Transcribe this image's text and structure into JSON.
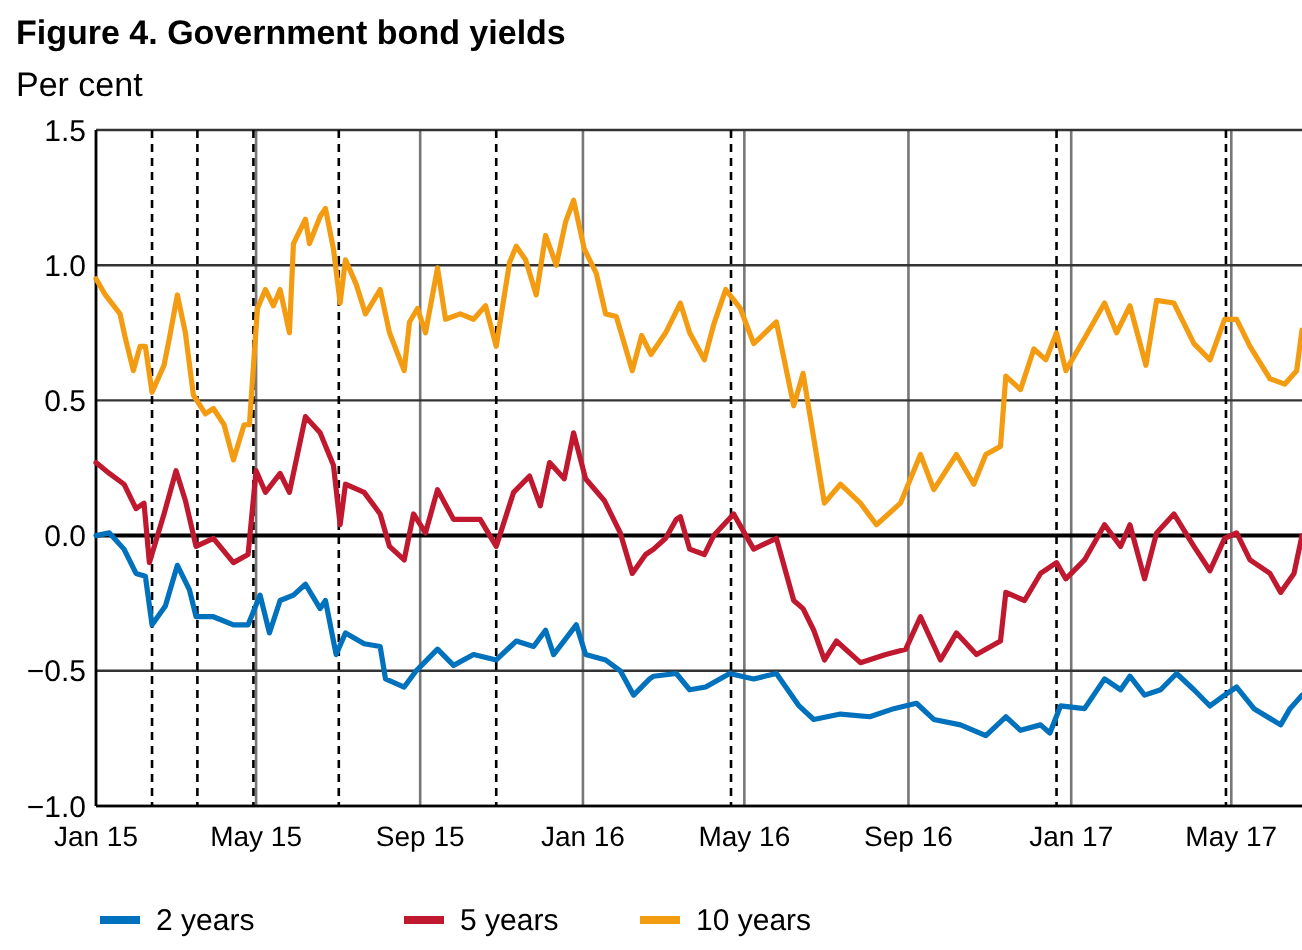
{
  "chart_data": {
    "type": "line",
    "title": "Figure 4. Government bond yields",
    "subtitle": "Per cent",
    "xlim": [
      "2015-01-01",
      "2017-06-23"
    ],
    "xticks": [
      {
        "value": "2015-01-01",
        "label": "Jan 15"
      },
      {
        "value": "2015-05-01",
        "label": "May 15"
      },
      {
        "value": "2015-09-01",
        "label": "Sep 15"
      },
      {
        "value": "2016-01-01",
        "label": "Jan 16"
      },
      {
        "value": "2016-05-01",
        "label": "May 16"
      },
      {
        "value": "2016-09-01",
        "label": "Sep 16"
      },
      {
        "value": "2017-01-01",
        "label": "Jan 17"
      },
      {
        "value": "2017-05-01",
        "label": "May 17"
      }
    ],
    "ylim": [
      -1,
      1.5
    ],
    "yticks": [
      {
        "value": -1,
        "label": "−1.0"
      },
      {
        "value": -0.5,
        "label": "−0.5"
      },
      {
        "value": 0,
        "label": "0.0"
      },
      {
        "value": 0.5,
        "label": "0.5"
      },
      {
        "value": 1,
        "label": "1.0"
      },
      {
        "value": 1.5,
        "label": "1.5"
      }
    ],
    "grid": true,
    "legend": "bottom",
    "marker": "none",
    "line_style": "solid",
    "ref_lines": [
      {
        "axis": "x",
        "value": "2015-02-12",
        "color": "#000000",
        "line_style": "dashed"
      },
      {
        "axis": "x",
        "value": "2015-03-18",
        "color": "#000000",
        "line_style": "dashed"
      },
      {
        "axis": "x",
        "value": "2015-04-29",
        "color": "#000000",
        "line_style": "dashed"
      },
      {
        "axis": "x",
        "value": "2015-07-02",
        "color": "#000000",
        "line_style": "dashed"
      },
      {
        "axis": "x",
        "value": "2015-10-28",
        "color": "#000000",
        "line_style": "dashed"
      },
      {
        "axis": "x",
        "value": "2016-04-21",
        "color": "#000000",
        "line_style": "dashed"
      },
      {
        "axis": "x",
        "value": "2016-12-21",
        "color": "#000000",
        "line_style": "dashed"
      },
      {
        "axis": "x",
        "value": "2017-04-27",
        "color": "#000000",
        "line_style": "dashed"
      }
    ],
    "series": [
      {
        "name": "2 years",
        "color": "#0071bc",
        "x": [
          "2015-01-01",
          "2015-01-11",
          "2015-01-22",
          "2015-01-31",
          "2015-02-07",
          "2015-02-12",
          "2015-02-22",
          "2015-03-03",
          "2015-03-12",
          "2015-03-17",
          "2015-03-30",
          "2015-04-14",
          "2015-04-25",
          "2015-05-04",
          "2015-05-11",
          "2015-05-19",
          "2015-05-29",
          "2015-06-07",
          "2015-06-18",
          "2015-06-22",
          "2015-06-30",
          "2015-07-07",
          "2015-07-21",
          "2015-08-02",
          "2015-08-06",
          "2015-08-20",
          "2015-08-29",
          "2015-09-14",
          "2015-09-26",
          "2015-10-11",
          "2015-10-28",
          "2015-11-12",
          "2015-11-25",
          "2015-12-04",
          "2015-12-10",
          "2015-12-27",
          "2016-01-03",
          "2016-01-18",
          "2016-01-29",
          "2016-02-08",
          "2016-02-20",
          "2016-02-23",
          "2016-03-11",
          "2016-03-21",
          "2016-04-02",
          "2016-04-20",
          "2016-05-08",
          "2016-05-25",
          "2016-06-11",
          "2016-06-22",
          "2016-07-12",
          "2016-08-03",
          "2016-08-21",
          "2016-09-07",
          "2016-09-20",
          "2016-10-10",
          "2016-10-29",
          "2016-11-13",
          "2016-11-24",
          "2016-12-09",
          "2016-12-16",
          "2016-12-24",
          "2017-01-11",
          "2017-01-26",
          "2017-02-07",
          "2017-02-14",
          "2017-02-25",
          "2017-03-09",
          "2017-03-21",
          "2017-04-03",
          "2017-04-15",
          "2017-04-26",
          "2017-05-05",
          "2017-05-18",
          "2017-06-07",
          "2017-06-14",
          "2017-06-23"
        ],
        "values": [
          0.0,
          0.01,
          -0.05,
          -0.14,
          -0.15,
          -0.33,
          -0.26,
          -0.11,
          -0.2,
          -0.3,
          -0.3,
          -0.33,
          -0.33,
          -0.22,
          -0.36,
          -0.24,
          -0.22,
          -0.18,
          -0.27,
          -0.24,
          -0.44,
          -0.36,
          -0.4,
          -0.41,
          -0.53,
          -0.56,
          -0.5,
          -0.42,
          -0.48,
          -0.44,
          -0.46,
          -0.39,
          -0.41,
          -0.35,
          -0.44,
          -0.33,
          -0.44,
          -0.46,
          -0.5,
          -0.59,
          -0.53,
          -0.52,
          -0.51,
          -0.57,
          -0.56,
          -0.51,
          -0.53,
          -0.51,
          -0.63,
          -0.68,
          -0.66,
          -0.67,
          -0.64,
          -0.62,
          -0.68,
          -0.7,
          -0.74,
          -0.67,
          -0.72,
          -0.7,
          -0.73,
          -0.63,
          -0.64,
          -0.53,
          -0.57,
          -0.52,
          -0.59,
          -0.57,
          -0.51,
          -0.57,
          -0.63,
          -0.59,
          -0.56,
          -0.64,
          -0.7,
          -0.64,
          -0.59
        ]
      },
      {
        "name": "5 years",
        "color": "#c0182e",
        "x": [
          "2015-01-01",
          "2015-01-11",
          "2015-01-22",
          "2015-01-31",
          "2015-02-06",
          "2015-02-10",
          "2015-02-21",
          "2015-03-02",
          "2015-03-09",
          "2015-03-17",
          "2015-03-30",
          "2015-04-14",
          "2015-04-25",
          "2015-05-01",
          "2015-05-08",
          "2015-05-19",
          "2015-05-26",
          "2015-06-07",
          "2015-06-18",
          "2015-06-28",
          "2015-07-03",
          "2015-07-07",
          "2015-07-21",
          "2015-08-02",
          "2015-08-09",
          "2015-08-20",
          "2015-08-27",
          "2015-09-05",
          "2015-09-14",
          "2015-09-26",
          "2015-10-16",
          "2015-10-28",
          "2015-11-10",
          "2015-11-22",
          "2015-11-30",
          "2015-12-07",
          "2015-12-18",
          "2015-12-25",
          "2016-01-03",
          "2016-01-17",
          "2016-01-29",
          "2016-02-07",
          "2016-02-17",
          "2016-02-23",
          "2016-03-03",
          "2016-03-11",
          "2016-03-14",
          "2016-03-21",
          "2016-04-01",
          "2016-04-08",
          "2016-04-23",
          "2016-05-01",
          "2016-05-08",
          "2016-05-25",
          "2016-06-07",
          "2016-06-14",
          "2016-06-22",
          "2016-06-30",
          "2016-07-09",
          "2016-07-27",
          "2016-08-15",
          "2016-08-30",
          "2016-09-10",
          "2016-09-25",
          "2016-10-07",
          "2016-10-22",
          "2016-11-09",
          "2016-11-13",
          "2016-11-27",
          "2016-12-09",
          "2016-12-21",
          "2016-12-28",
          "2017-01-11",
          "2017-01-26",
          "2017-02-07",
          "2017-02-14",
          "2017-02-25",
          "2017-03-06",
          "2017-03-19",
          "2017-04-03",
          "2017-04-15",
          "2017-04-26",
          "2017-05-05",
          "2017-05-15",
          "2017-05-30",
          "2017-06-07",
          "2017-06-17",
          "2017-06-23"
        ],
        "values": [
          0.27,
          0.23,
          0.19,
          0.1,
          0.12,
          -0.1,
          0.08,
          0.24,
          0.13,
          -0.04,
          -0.01,
          -0.1,
          -0.07,
          0.24,
          0.16,
          0.23,
          0.16,
          0.44,
          0.38,
          0.26,
          0.04,
          0.19,
          0.16,
          0.08,
          -0.04,
          -0.09,
          0.08,
          0.01,
          0.17,
          0.06,
          0.06,
          -0.04,
          0.16,
          0.22,
          0.11,
          0.27,
          0.21,
          0.38,
          0.21,
          0.13,
          0.01,
          -0.14,
          -0.07,
          -0.05,
          -0.01,
          0.06,
          0.07,
          -0.05,
          -0.07,
          0.0,
          0.08,
          0.01,
          -0.05,
          -0.01,
          -0.24,
          -0.27,
          -0.35,
          -0.46,
          -0.39,
          -0.47,
          -0.44,
          -0.42,
          -0.3,
          -0.46,
          -0.36,
          -0.44,
          -0.39,
          -0.21,
          -0.24,
          -0.14,
          -0.1,
          -0.16,
          -0.09,
          0.04,
          -0.04,
          0.04,
          -0.16,
          0.01,
          0.08,
          -0.04,
          -0.13,
          -0.01,
          0.01,
          -0.09,
          -0.14,
          -0.21,
          -0.14,
          0.0
        ]
      },
      {
        "name": "10 years",
        "color": "#f39c12",
        "x": [
          "2015-01-01",
          "2015-01-08",
          "2015-01-19",
          "2015-01-23",
          "2015-01-29",
          "2015-02-03",
          "2015-02-07",
          "2015-02-12",
          "2015-02-21",
          "2015-02-25",
          "2015-03-03",
          "2015-03-09",
          "2015-03-15",
          "2015-03-24",
          "2015-03-30",
          "2015-04-07",
          "2015-04-14",
          "2015-04-22",
          "2015-04-26",
          "2015-05-02",
          "2015-05-08",
          "2015-05-14",
          "2015-05-19",
          "2015-05-26",
          "2015-05-29",
          "2015-06-07",
          "2015-06-10",
          "2015-06-18",
          "2015-06-22",
          "2015-06-28",
          "2015-07-03",
          "2015-07-07",
          "2015-07-15",
          "2015-07-22",
          "2015-08-02",
          "2015-08-09",
          "2015-08-20",
          "2015-08-24",
          "2015-08-30",
          "2015-09-05",
          "2015-09-14",
          "2015-09-20",
          "2015-10-01",
          "2015-10-11",
          "2015-10-20",
          "2015-10-28",
          "2015-11-07",
          "2015-11-12",
          "2015-11-19",
          "2015-11-27",
          "2015-12-04",
          "2015-12-12",
          "2015-12-19",
          "2015-12-25",
          "2016-01-02",
          "2016-01-11",
          "2016-01-18",
          "2016-01-26",
          "2016-02-07",
          "2016-02-14",
          "2016-02-21",
          "2016-03-03",
          "2016-03-14",
          "2016-03-21",
          "2016-04-01",
          "2016-04-08",
          "2016-04-17",
          "2016-04-28",
          "2016-05-08",
          "2016-05-25",
          "2016-06-07",
          "2016-06-14",
          "2016-06-19",
          "2016-06-30",
          "2016-07-12",
          "2016-07-27",
          "2016-08-08",
          "2016-08-26",
          "2016-09-10",
          "2016-09-20",
          "2016-10-07",
          "2016-10-20",
          "2016-10-29",
          "2016-11-09",
          "2016-11-13",
          "2016-11-24",
          "2016-12-04",
          "2016-12-13",
          "2016-12-21",
          "2016-12-28",
          "2017-01-11",
          "2017-01-26",
          "2017-02-04",
          "2017-02-14",
          "2017-02-26",
          "2017-03-06",
          "2017-03-19",
          "2017-04-03",
          "2017-04-15",
          "2017-04-26",
          "2017-05-05",
          "2017-05-15",
          "2017-05-30",
          "2017-06-10",
          "2017-06-19",
          "2017-06-23"
        ],
        "values": [
          0.95,
          0.89,
          0.82,
          0.73,
          0.61,
          0.7,
          0.7,
          0.53,
          0.63,
          0.73,
          0.89,
          0.75,
          0.52,
          0.45,
          0.47,
          0.41,
          0.28,
          0.41,
          0.41,
          0.84,
          0.91,
          0.85,
          0.91,
          0.75,
          1.08,
          1.17,
          1.08,
          1.18,
          1.21,
          1.06,
          0.86,
          1.02,
          0.93,
          0.82,
          0.91,
          0.75,
          0.61,
          0.79,
          0.84,
          0.75,
          0.99,
          0.8,
          0.82,
          0.8,
          0.85,
          0.7,
          1.01,
          1.07,
          1.02,
          0.89,
          1.11,
          1.0,
          1.16,
          1.24,
          1.06,
          0.97,
          0.82,
          0.81,
          0.61,
          0.74,
          0.67,
          0.75,
          0.86,
          0.75,
          0.65,
          0.78,
          0.91,
          0.84,
          0.71,
          0.79,
          0.48,
          0.6,
          0.45,
          0.12,
          0.19,
          0.12,
          0.04,
          0.12,
          0.3,
          0.17,
          0.3,
          0.19,
          0.3,
          0.33,
          0.59,
          0.54,
          0.69,
          0.65,
          0.75,
          0.61,
          0.73,
          0.86,
          0.75,
          0.85,
          0.63,
          0.87,
          0.86,
          0.71,
          0.65,
          0.8,
          0.8,
          0.7,
          0.58,
          0.56,
          0.61,
          0.76
        ]
      }
    ]
  }
}
